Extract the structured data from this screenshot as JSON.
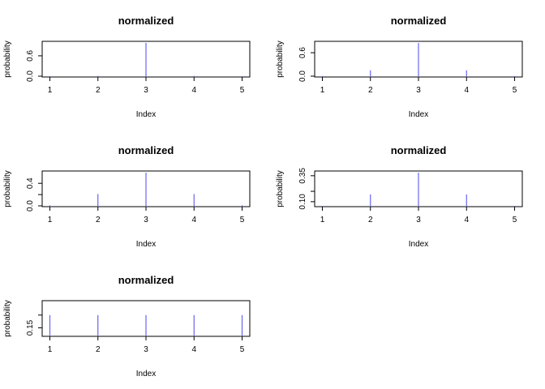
{
  "chart_data": [
    {
      "type": "bar",
      "title": "normalized",
      "xlabel": "Index",
      "ylabel": "probability",
      "x": [
        1,
        2,
        3,
        4,
        5
      ],
      "values": [
        0.0,
        0.01,
        0.98,
        0.01,
        0.0
      ],
      "xticks": [
        "1",
        "2",
        "3",
        "4",
        "5"
      ],
      "yticks": [
        0.0,
        0.6
      ],
      "ytick_labels": [
        "0.0",
        "0.6"
      ],
      "ylim": [
        0.0,
        0.98
      ],
      "color": "#6666ee"
    },
    {
      "type": "bar",
      "title": "normalized",
      "xlabel": "Index",
      "ylabel": "probability",
      "x": [
        1,
        2,
        3,
        4,
        5
      ],
      "values": [
        0.005,
        0.15,
        0.85,
        0.15,
        0.005
      ],
      "xticks": [
        "1",
        "2",
        "3",
        "4",
        "5"
      ],
      "yticks": [
        0.0,
        0.6
      ],
      "ytick_labels": [
        "0.0",
        "0.6"
      ],
      "ylim": [
        0.0,
        0.85
      ],
      "color": "#6666ee"
    },
    {
      "type": "bar",
      "title": "normalized",
      "xlabel": "Index",
      "ylabel": "probability",
      "x": [
        1,
        2,
        3,
        4,
        5
      ],
      "values": [
        0.01,
        0.21,
        0.59,
        0.21,
        0.01
      ],
      "xticks": [
        "1",
        "2",
        "3",
        "4",
        "5"
      ],
      "yticks": [
        0.0,
        0.2,
        0.4
      ],
      "ytick_labels": [
        "0.0",
        "0.4"
      ],
      "ylim": [
        0.0,
        0.59
      ],
      "color": "#6666ee"
    },
    {
      "type": "bar",
      "title": "normalized",
      "xlabel": "Index",
      "ylabel": "probability",
      "x": [
        1,
        2,
        3,
        4,
        5
      ],
      "values": [
        0.06,
        0.17,
        0.38,
        0.17,
        0.06
      ],
      "xticks": [
        "1",
        "2",
        "3",
        "4",
        "5"
      ],
      "yticks": [
        0.1,
        0.2,
        0.35
      ],
      "ytick_labels": [
        "0.10",
        "0.35"
      ],
      "ylim": [
        0.06,
        0.38
      ],
      "color": "#6666ee"
    },
    {
      "type": "bar",
      "title": "normalized",
      "xlabel": "Index",
      "ylabel": "probability",
      "x": [
        1,
        2,
        3,
        4,
        5
      ],
      "values": [
        0.2,
        0.2,
        0.2,
        0.2,
        0.2
      ],
      "xticks": [
        "1",
        "2",
        "3",
        "4",
        "5"
      ],
      "yticks": [
        0.15,
        0.2
      ],
      "ytick_labels": [
        "0.15"
      ],
      "ylim": [
        0.12,
        0.25
      ],
      "color": "#6666ee"
    }
  ]
}
